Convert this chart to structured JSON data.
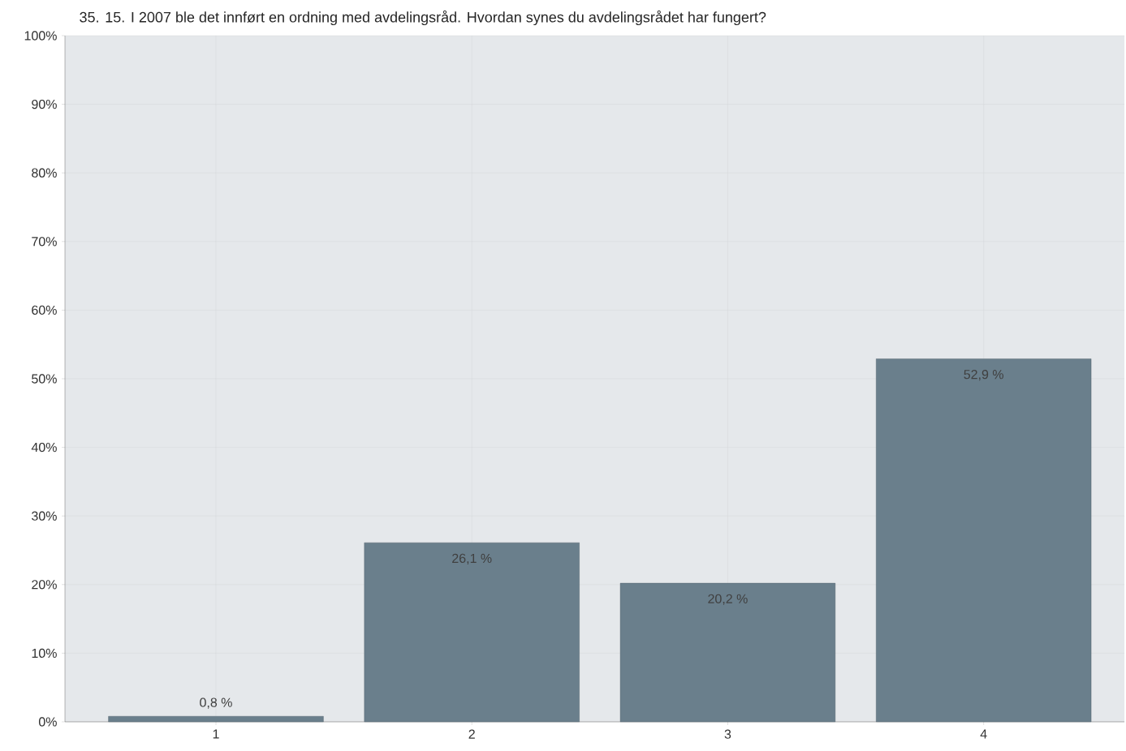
{
  "chart_data": {
    "type": "bar",
    "title": "35. 15. I 2007 ble det innført en ordning med avdelingsråd. Hvordan synes du avdelingsrådet har fungert?",
    "categories": [
      "1",
      "2",
      "3",
      "4"
    ],
    "values": [
      0.8,
      26.1,
      20.2,
      52.9
    ],
    "value_labels": [
      "0,8 %",
      "26,1 %",
      "20,2 %",
      "52,9 %"
    ],
    "color": "#6a7f8c",
    "ylim": [
      0,
      100
    ],
    "yticks": [
      {
        "value": 0,
        "label": "0%"
      },
      {
        "value": 10,
        "label": "10%"
      },
      {
        "value": 20,
        "label": "20%"
      },
      {
        "value": 30,
        "label": "30%"
      },
      {
        "value": 40,
        "label": "40%"
      },
      {
        "value": 50,
        "label": "50%"
      },
      {
        "value": 60,
        "label": "60%"
      },
      {
        "value": 70,
        "label": "70%"
      },
      {
        "value": 80,
        "label": "80%"
      },
      {
        "value": 90,
        "label": "90%"
      },
      {
        "value": 100,
        "label": "100%"
      }
    ],
    "grid": true
  }
}
